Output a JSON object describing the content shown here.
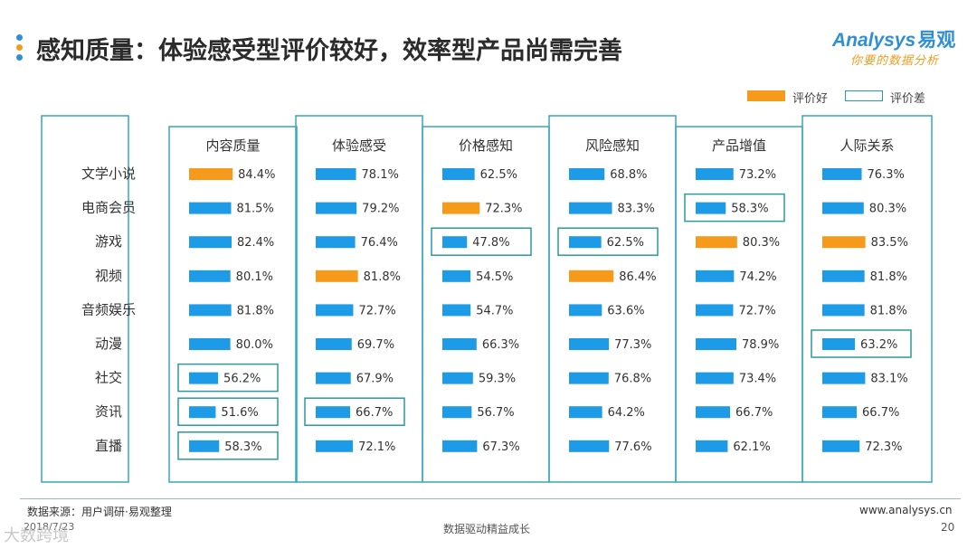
{
  "title": "感知质量：体验感受型评价较好，效率型产品尚需完善",
  "logo": {
    "brand": "Analysys",
    "brand_cn": "易观",
    "slogan": "你要的数据分析"
  },
  "legend": [
    {
      "label": "评价好",
      "color": "#f59a1b",
      "style": "fill"
    },
    {
      "label": "评价差",
      "color": "#2a9a9a",
      "style": "outline"
    }
  ],
  "colors": {
    "bar": "#1e9be6",
    "good": "#f59a1b",
    "bad_outline": "#2a9a9a",
    "panel_border": "#3aa6b9"
  },
  "chart_data": {
    "type": "bar",
    "categories": [
      "文学小说",
      "电商会员",
      "游戏",
      "视频",
      "音频娱乐",
      "动漫",
      "社交",
      "资讯",
      "直播"
    ],
    "unit": "%",
    "xlim": [
      0,
      100
    ],
    "series": [
      {
        "name": "内容质量",
        "values": [
          84.4,
          81.5,
          82.4,
          80.1,
          81.8,
          80.0,
          56.2,
          51.6,
          58.3
        ],
        "good": [
          0
        ],
        "bad": [
          6,
          7,
          8
        ]
      },
      {
        "name": "体验感受",
        "values": [
          78.1,
          79.2,
          76.4,
          81.8,
          72.7,
          69.7,
          67.9,
          66.7,
          72.1
        ],
        "good": [
          3
        ],
        "bad": [
          7
        ]
      },
      {
        "name": "价格感知",
        "values": [
          62.5,
          72.3,
          47.8,
          54.5,
          54.7,
          66.3,
          59.3,
          56.7,
          67.3
        ],
        "good": [
          1
        ],
        "bad": [
          2
        ]
      },
      {
        "name": "风险感知",
        "values": [
          68.8,
          83.3,
          62.5,
          86.4,
          63.6,
          77.3,
          76.8,
          64.2,
          77.6
        ],
        "good": [
          3
        ],
        "bad": [
          2
        ]
      },
      {
        "name": "产品增值",
        "values": [
          73.2,
          58.3,
          80.3,
          74.2,
          72.7,
          78.9,
          73.4,
          66.7,
          62.1
        ],
        "good": [
          2
        ],
        "bad": [
          1
        ]
      },
      {
        "name": "人际关系",
        "values": [
          76.3,
          80.3,
          83.5,
          81.8,
          81.8,
          63.2,
          83.1,
          66.7,
          72.3
        ],
        "good": [
          2
        ],
        "bad": [
          5
        ]
      }
    ]
  },
  "footer": {
    "source": "数据来源：用户调研·易观整理",
    "date": "2018/7/23",
    "slogan": "数据驱动精益成长",
    "url": "www.analysys.cn",
    "page": "20",
    "badge": "大数跨境"
  }
}
